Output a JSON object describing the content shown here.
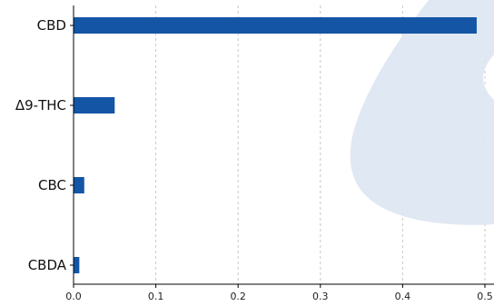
{
  "chart_data": {
    "type": "bar",
    "orientation": "horizontal",
    "categories": [
      "CBD",
      "Δ9-THC",
      "CBC",
      "CBDA"
    ],
    "values": [
      0.49,
      0.05,
      0.013,
      0.007
    ],
    "xticks": [
      "0.0",
      "0.1",
      "0.2",
      "0.3",
      "0.4",
      "0.5"
    ],
    "xlim": [
      0,
      0.5
    ],
    "title": "",
    "xlabel": "",
    "ylabel": "",
    "grid": "x-dashed",
    "bar_color": "#1455a6",
    "watermark_color": "#dde5f2"
  }
}
